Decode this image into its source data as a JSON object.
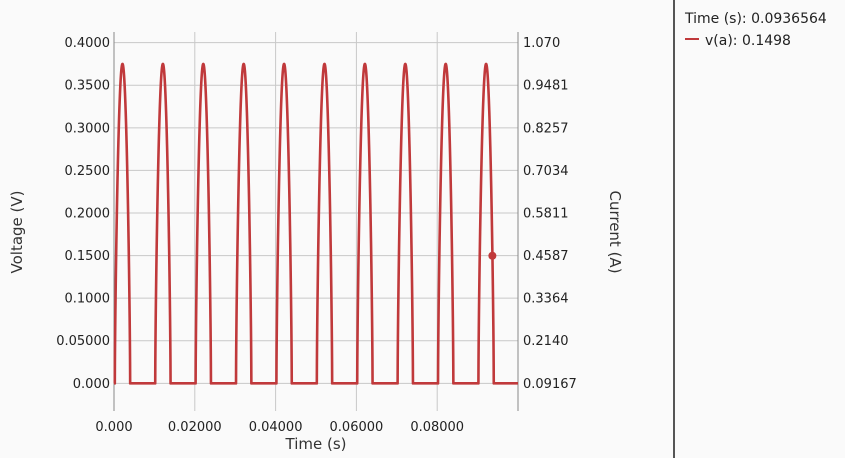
{
  "chart_data": {
    "type": "line",
    "title": "",
    "xlabel": "Time (s)",
    "ylabel": "Voltage (V)",
    "y2label": "Current (A)",
    "xlim": [
      0,
      0.1
    ],
    "ylim": [
      -0.0325,
      0.4125
    ],
    "x_ticks": [
      "0.000",
      "0.02000",
      "0.04000",
      "0.06000",
      "0.08000"
    ],
    "x_tick_values": [
      0,
      0.02,
      0.04,
      0.06,
      0.08
    ],
    "y_ticks": [
      "0.000",
      "0.05000",
      "0.1000",
      "0.1500",
      "0.2000",
      "0.2500",
      "0.3000",
      "0.3500",
      "0.4000"
    ],
    "y_tick_values": [
      0,
      0.05,
      0.1,
      0.15,
      0.2,
      0.25,
      0.3,
      0.35,
      0.4
    ],
    "y2_ticks": [
      "0.09167",
      "0.2140",
      "0.3364",
      "0.4587",
      "0.5811",
      "0.7034",
      "0.8257",
      "0.9481",
      "1.070"
    ],
    "grid": true,
    "series": [
      {
        "name": "v(a)",
        "color": "#c0393b",
        "period": 0.01,
        "pulse_start": 0.0002,
        "pulse_width": 0.0038,
        "peak": 0.375
      }
    ],
    "cursor": {
      "x": 0.0936564,
      "y": 0.1498
    }
  },
  "readout": {
    "time_label": "Time (s): 0.0936564",
    "series_label": "v(a): 0.1498"
  }
}
